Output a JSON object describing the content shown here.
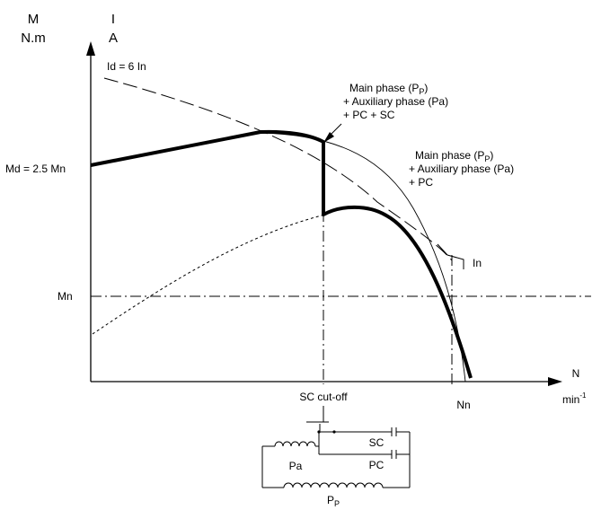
{
  "axes": {
    "y_torque": {
      "symbol": "M",
      "unit": "N.m"
    },
    "y_current": {
      "symbol": "I",
      "unit": "A"
    },
    "x_speed": {
      "symbol": "N",
      "unit_base": "min",
      "unit_exp": "-1"
    }
  },
  "labels": {
    "id": "Id = 6 In",
    "md": "Md = 2.5 Mn",
    "mn": "Mn",
    "in": "In",
    "nn": "Nn",
    "sc_cutoff": "SC cut-off"
  },
  "annotations": {
    "upper": {
      "line1_text": "Main phase (P",
      "line1_sub": "P",
      "line1_end": ")",
      "line2": "+ Auxiliary phase (Pa)",
      "line3": "+ PC + SC"
    },
    "lower": {
      "line1_text": "Main phase (P",
      "line1_sub": "P",
      "line1_end": ")",
      "line2": "+ Auxiliary phase (Pa)",
      "line3": "+ PC"
    }
  },
  "circuit": {
    "sc": "SC",
    "pc": "PC",
    "pa": "Pa",
    "pp_main": "P",
    "pp_sub": "P"
  }
}
